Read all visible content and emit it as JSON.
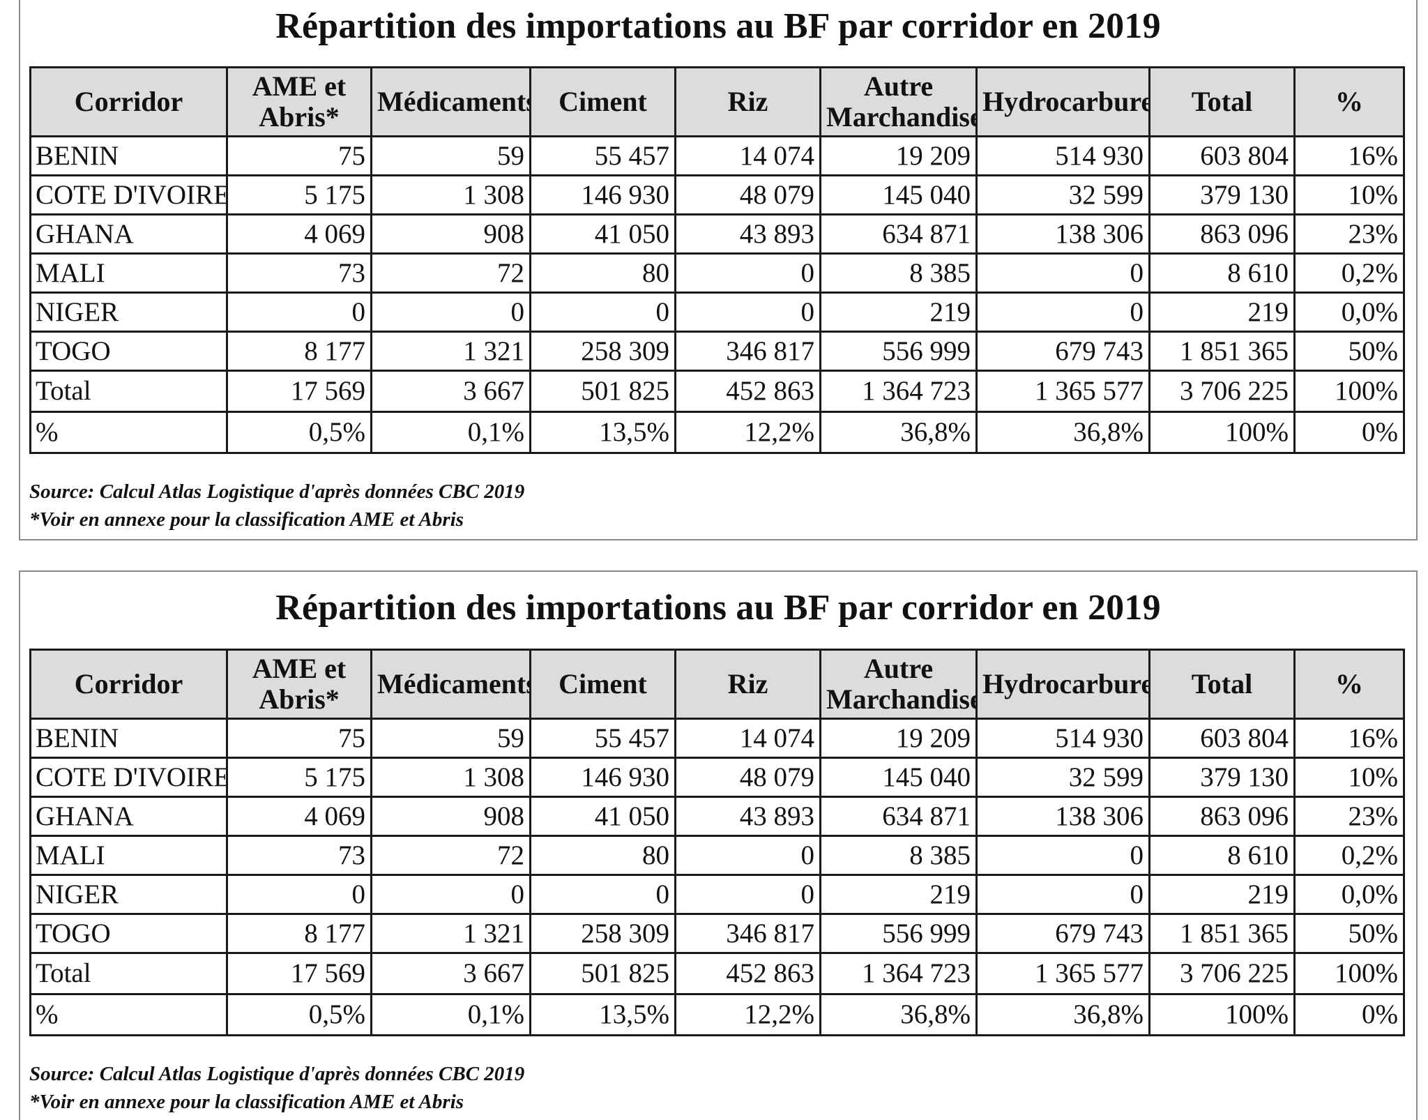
{
  "title": "Répartition des importations au BF par corridor en 2019",
  "columns": [
    "Corridor",
    "AME et Abris*",
    "Médicaments",
    "Ciment",
    "Riz",
    "Autre Marchandise",
    "Hydrocarbure",
    "Total",
    "%"
  ],
  "rows": [
    [
      "BENIN",
      "75",
      "59",
      "55 457",
      "14 074",
      "19 209",
      "514 930",
      "603 804",
      "16%"
    ],
    [
      "COTE D'IVOIRE",
      "5 175",
      "1 308",
      "146 930",
      "48 079",
      "145 040",
      "32 599",
      "379 130",
      "10%"
    ],
    [
      "GHANA",
      "4 069",
      "908",
      "41 050",
      "43 893",
      "634 871",
      "138 306",
      "863 096",
      "23%"
    ],
    [
      "MALI",
      "73",
      "72",
      "80",
      "0",
      "8 385",
      "0",
      "8 610",
      "0,2%"
    ],
    [
      "NIGER",
      "0",
      "0",
      "0",
      "0",
      "219",
      "0",
      "219",
      "0,0%"
    ],
    [
      "TOGO",
      "8 177",
      "1 321",
      "258 309",
      "346 817",
      "556 999",
      "679 743",
      "1 851 365",
      "50%"
    ],
    [
      "Total",
      "17 569",
      "3 667",
      "501 825",
      "452 863",
      "1 364 723",
      "1 365 577",
      "3 706 225",
      "100%"
    ],
    [
      "%",
      "0,5%",
      "0,1%",
      "13,5%",
      "12,2%",
      "36,8%",
      "36,8%",
      "100%",
      "0%"
    ]
  ],
  "source": "Source: Calcul Atlas Logistique d'après données CBC 2019",
  "note": "*Voir en annexe pour la classification AME et Abris"
}
